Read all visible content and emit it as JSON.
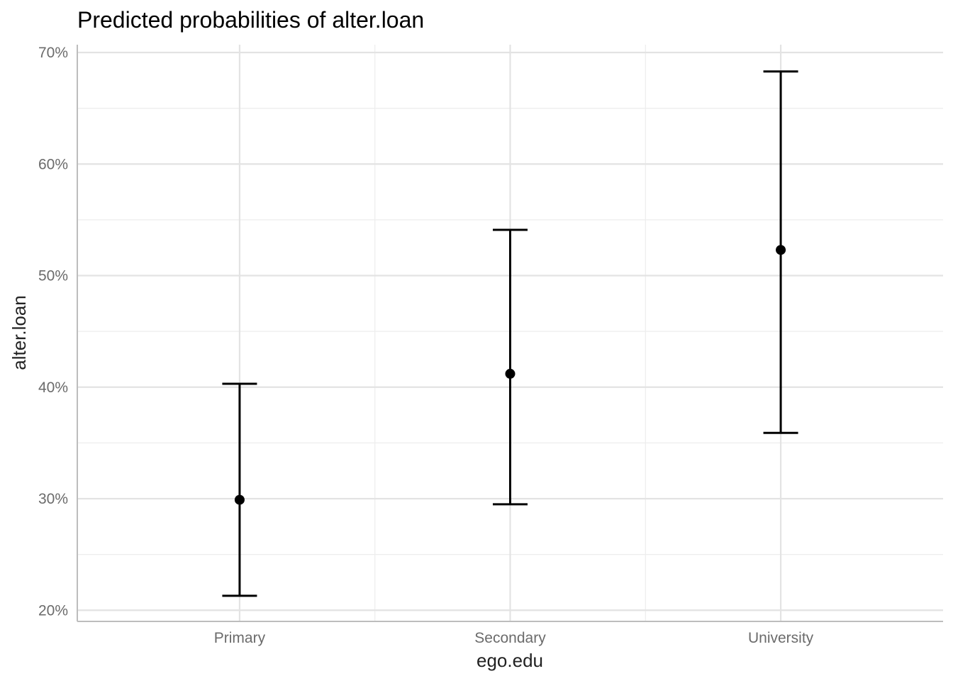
{
  "chart_data": {
    "type": "scatter",
    "title": "Predicted probabilities of alter.loan",
    "xlabel": "ego.edu",
    "ylabel": "alter.loan",
    "categories": [
      "Primary",
      "Secondary",
      "University"
    ],
    "series": [
      {
        "values": [
          0.299,
          0.412,
          0.523
        ],
        "ci_low": [
          0.213,
          0.295,
          0.359
        ],
        "ci_high": [
          0.403,
          0.541,
          0.683
        ]
      }
    ],
    "y_ticks": [
      0.2,
      0.3,
      0.4,
      0.5,
      0.6,
      0.7
    ],
    "y_tick_labels": [
      "20%",
      "30%",
      "40%",
      "50%",
      "60%",
      "70%"
    ],
    "ylim": [
      0.19,
      0.707
    ],
    "grid": true,
    "legend": "none",
    "colors": {
      "point": "#000000",
      "errorbar": "#000000",
      "grid": "#e3e3e3",
      "axis": "#bdbdbd"
    }
  }
}
